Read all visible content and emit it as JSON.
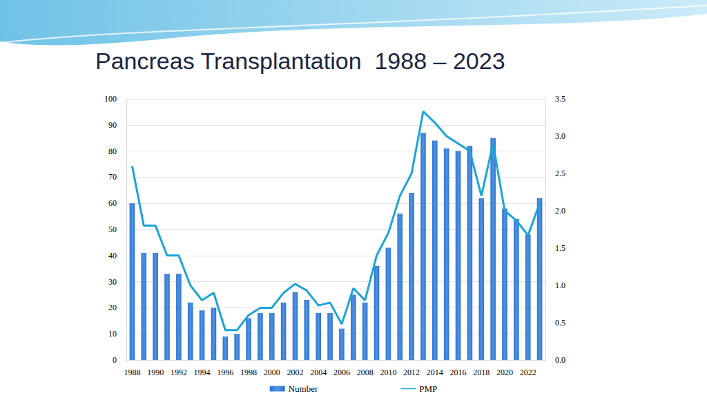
{
  "chart_data": {
    "type": "bar",
    "title": "Pancreas Transplantation  1988 – 2023",
    "categories": [
      "1988",
      null,
      "1990",
      null,
      "1992",
      null,
      "1994",
      null,
      "1996",
      null,
      "1998",
      null,
      "2000",
      null,
      "2002",
      null,
      "2004",
      null,
      "2006",
      null,
      "2008",
      null,
      "2010",
      null,
      "2012",
      null,
      "2014",
      null,
      "2016",
      null,
      "2018",
      null,
      "2020",
      null,
      "2022",
      null
    ],
    "series": [
      {
        "name": "Number",
        "type": "bar",
        "color": "#2f72c9",
        "values": [
          60,
          41,
          41,
          33,
          33,
          22,
          19,
          20,
          9,
          10,
          16,
          18,
          18,
          22,
          26,
          23,
          18,
          18,
          12,
          25,
          22,
          36,
          43,
          56,
          64,
          87,
          84,
          81,
          80,
          82,
          62,
          85,
          58,
          54,
          48,
          62
        ]
      },
      {
        "name": "PMP",
        "type": "line",
        "color": "#1ca3d8",
        "axis": "y2",
        "marker": "none",
        "values": [
          2.6,
          1.8,
          1.8,
          1.4,
          1.4,
          1.0,
          0.8,
          0.9,
          0.4,
          0.4,
          0.6,
          0.7,
          0.7,
          0.9,
          1.02,
          0.93,
          0.73,
          0.77,
          0.48,
          0.96,
          0.8,
          1.4,
          1.7,
          2.2,
          2.5,
          3.33,
          3.18,
          3.0,
          2.9,
          2.8,
          2.2,
          2.9,
          2.0,
          1.87,
          1.67,
          2.1
        ]
      }
    ],
    "ylim": [
      0,
      100
    ],
    "yticks": [
      0,
      10,
      20,
      30,
      40,
      50,
      60,
      70,
      80,
      90,
      100
    ],
    "y2lim": [
      0,
      3.5
    ],
    "y2ticks": [
      {
        "value": 0,
        "label": "0.0"
      },
      {
        "value": 0.5,
        "label": "0.5"
      },
      {
        "value": 1,
        "label": "1.0"
      },
      {
        "value": 1.5,
        "label": "1.5"
      },
      {
        "value": 2,
        "label": "2.0"
      },
      {
        "value": 2.5,
        "label": "2.5"
      },
      {
        "value": 3,
        "label": "3.0"
      },
      {
        "value": 3.5,
        "label": "3.5"
      }
    ],
    "grid": true,
    "legend": "bottom"
  }
}
